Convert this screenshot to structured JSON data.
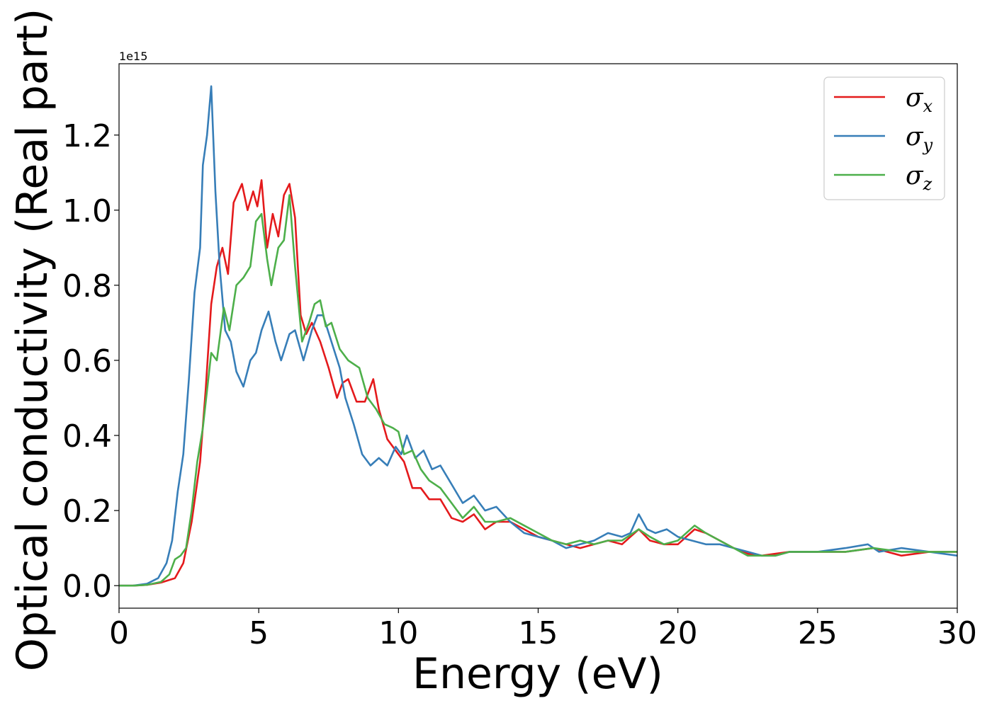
{
  "chart_data": {
    "type": "line",
    "xlabel": "Energy (eV)",
    "ylabel": "Optical conductivity (Real part)",
    "y_offset_label": "1e15",
    "xlim": [
      0,
      30
    ],
    "ylim": [
      -0.06,
      1.39
    ],
    "x_ticks": [
      0,
      5,
      10,
      15,
      20,
      25,
      30
    ],
    "x_tick_labels": [
      "0",
      "5",
      "10",
      "15",
      "20",
      "25",
      "30"
    ],
    "y_ticks": [
      0.0,
      0.2,
      0.4,
      0.6,
      0.8,
      1.0,
      1.2
    ],
    "y_tick_labels": [
      "0.0",
      "0.2",
      "0.4",
      "0.6",
      "0.8",
      "1.0",
      "1.2"
    ],
    "grid": false,
    "legend_position": "top-right",
    "series": [
      {
        "name": "σx",
        "symbol": "σ",
        "subscript": "x",
        "color": "#e41a1c",
        "x": [
          0,
          0.5,
          1.0,
          1.5,
          2.0,
          2.3,
          2.6,
          2.9,
          3.1,
          3.3,
          3.5,
          3.7,
          3.9,
          4.1,
          4.4,
          4.6,
          4.8,
          4.95,
          5.1,
          5.3,
          5.5,
          5.7,
          5.9,
          6.1,
          6.3,
          6.5,
          6.7,
          6.9,
          7.2,
          7.5,
          7.8,
          8.0,
          8.2,
          8.5,
          8.8,
          9.1,
          9.3,
          9.6,
          9.9,
          10.2,
          10.5,
          10.8,
          11.1,
          11.5,
          11.9,
          12.3,
          12.7,
          13.1,
          13.5,
          14.0,
          14.5,
          15.0,
          15.5,
          16.0,
          16.5,
          17.0,
          17.5,
          18.0,
          18.6,
          19.0,
          19.5,
          20.0,
          20.6,
          21.0,
          21.5,
          22.0,
          22.5,
          23.0,
          23.5,
          24.0,
          25.0,
          26.0,
          27.0,
          28.0,
          29.0,
          30.0
        ],
        "y": [
          0.0,
          0.0,
          0.002,
          0.008,
          0.02,
          0.06,
          0.17,
          0.33,
          0.52,
          0.75,
          0.85,
          0.9,
          0.83,
          1.02,
          1.07,
          1.0,
          1.05,
          1.01,
          1.08,
          0.9,
          0.99,
          0.93,
          1.04,
          1.07,
          0.98,
          0.72,
          0.67,
          0.7,
          0.65,
          0.58,
          0.5,
          0.54,
          0.55,
          0.49,
          0.49,
          0.55,
          0.47,
          0.39,
          0.36,
          0.33,
          0.26,
          0.26,
          0.23,
          0.23,
          0.18,
          0.17,
          0.19,
          0.15,
          0.17,
          0.17,
          0.15,
          0.13,
          0.12,
          0.11,
          0.1,
          0.11,
          0.12,
          0.11,
          0.15,
          0.12,
          0.11,
          0.11,
          0.15,
          0.14,
          0.12,
          0.1,
          0.085,
          0.08,
          0.085,
          0.09,
          0.09,
          0.09,
          0.1,
          0.08,
          0.09,
          0.09
        ]
      },
      {
        "name": "σy",
        "symbol": "σ",
        "subscript": "y",
        "color": "#377eb8",
        "x": [
          0,
          0.5,
          1.0,
          1.4,
          1.7,
          1.9,
          2.1,
          2.3,
          2.5,
          2.7,
          2.9,
          3.0,
          3.15,
          3.3,
          3.45,
          3.6,
          3.8,
          4.0,
          4.2,
          4.45,
          4.7,
          4.9,
          5.1,
          5.35,
          5.6,
          5.8,
          6.1,
          6.3,
          6.6,
          6.9,
          7.1,
          7.3,
          7.6,
          7.9,
          8.1,
          8.4,
          8.7,
          9.0,
          9.3,
          9.6,
          9.9,
          10.1,
          10.3,
          10.6,
          10.9,
          11.2,
          11.5,
          11.9,
          12.3,
          12.7,
          13.1,
          13.5,
          14.0,
          14.5,
          15.0,
          15.5,
          16.0,
          16.5,
          17.0,
          17.5,
          18.0,
          18.3,
          18.6,
          18.9,
          19.2,
          19.6,
          20.0,
          20.5,
          21.0,
          21.5,
          22.0,
          22.5,
          23.0,
          23.5,
          24.0,
          25.0,
          26.0,
          26.8,
          27.2,
          28.0,
          29.0,
          30.0
        ],
        "y": [
          0.0,
          0.0,
          0.005,
          0.02,
          0.06,
          0.12,
          0.25,
          0.35,
          0.55,
          0.78,
          0.9,
          1.12,
          1.2,
          1.33,
          1.05,
          0.85,
          0.68,
          0.65,
          0.57,
          0.53,
          0.6,
          0.62,
          0.68,
          0.73,
          0.65,
          0.6,
          0.67,
          0.68,
          0.6,
          0.68,
          0.72,
          0.72,
          0.65,
          0.58,
          0.5,
          0.43,
          0.35,
          0.32,
          0.34,
          0.32,
          0.37,
          0.35,
          0.4,
          0.34,
          0.36,
          0.31,
          0.32,
          0.27,
          0.22,
          0.24,
          0.2,
          0.21,
          0.17,
          0.14,
          0.13,
          0.12,
          0.1,
          0.11,
          0.12,
          0.14,
          0.13,
          0.14,
          0.19,
          0.15,
          0.14,
          0.15,
          0.13,
          0.12,
          0.11,
          0.11,
          0.1,
          0.09,
          0.08,
          0.08,
          0.09,
          0.09,
          0.1,
          0.11,
          0.09,
          0.1,
          0.09,
          0.08
        ]
      },
      {
        "name": "σz",
        "symbol": "σ",
        "subscript": "z",
        "color": "#4daf4a",
        "x": [
          0,
          0.5,
          1.0,
          1.5,
          1.8,
          2.0,
          2.2,
          2.4,
          2.6,
          2.8,
          3.0,
          3.3,
          3.5,
          3.75,
          3.95,
          4.2,
          4.45,
          4.7,
          4.9,
          5.1,
          5.3,
          5.45,
          5.7,
          5.9,
          6.1,
          6.3,
          6.55,
          6.8,
          7.0,
          7.2,
          7.4,
          7.6,
          7.9,
          8.2,
          8.6,
          8.9,
          9.2,
          9.5,
          9.8,
          10.0,
          10.2,
          10.5,
          10.8,
          11.1,
          11.5,
          11.9,
          12.3,
          12.7,
          13.1,
          13.5,
          14.0,
          14.5,
          15.0,
          15.5,
          16.0,
          16.5,
          17.0,
          17.5,
          18.0,
          18.6,
          19.0,
          19.5,
          20.0,
          20.6,
          21.0,
          21.5,
          22.0,
          22.5,
          23.0,
          23.5,
          24.0,
          25.0,
          26.0,
          27.0,
          28.0,
          29.0,
          30.0
        ],
        "y": [
          0.0,
          0.0,
          0.002,
          0.01,
          0.03,
          0.07,
          0.08,
          0.1,
          0.2,
          0.33,
          0.42,
          0.62,
          0.6,
          0.74,
          0.68,
          0.8,
          0.82,
          0.85,
          0.97,
          0.99,
          0.87,
          0.8,
          0.9,
          0.92,
          1.04,
          0.85,
          0.65,
          0.7,
          0.75,
          0.76,
          0.69,
          0.7,
          0.63,
          0.6,
          0.58,
          0.5,
          0.47,
          0.43,
          0.42,
          0.41,
          0.35,
          0.36,
          0.31,
          0.28,
          0.26,
          0.22,
          0.18,
          0.21,
          0.17,
          0.17,
          0.18,
          0.16,
          0.14,
          0.12,
          0.11,
          0.12,
          0.11,
          0.12,
          0.12,
          0.15,
          0.13,
          0.11,
          0.12,
          0.16,
          0.14,
          0.12,
          0.1,
          0.08,
          0.08,
          0.08,
          0.09,
          0.09,
          0.09,
          0.1,
          0.09,
          0.09,
          0.09
        ]
      }
    ]
  }
}
